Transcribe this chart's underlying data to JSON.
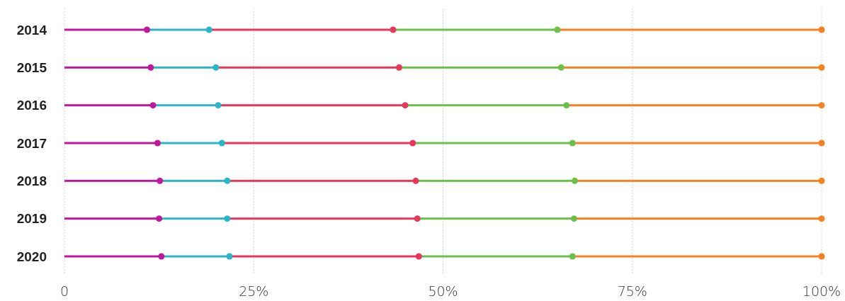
{
  "chart_data": {
    "type": "bar",
    "orientation": "horizontal",
    "stacked": true,
    "marker": "circle",
    "grid": "x",
    "categories": [
      "2014",
      "2015",
      "2016",
      "2017",
      "2018",
      "2019",
      "2020"
    ],
    "xlim": [
      0,
      100
    ],
    "xticks": [
      {
        "value": 0,
        "label": "0"
      },
      {
        "value": 25,
        "label": "25%"
      },
      {
        "value": 50,
        "label": "50%"
      },
      {
        "value": 75,
        "label": "75%"
      },
      {
        "value": 100,
        "label": "100%"
      }
    ],
    "series": [
      {
        "color": "#c0189a",
        "values": [
          10.9,
          11.4,
          11.7,
          12.3,
          12.6,
          12.5,
          12.8
        ]
      },
      {
        "color": "#2bb5c8",
        "values": [
          8.2,
          8.6,
          8.6,
          8.5,
          8.9,
          9.0,
          9.0
        ]
      },
      {
        "color": "#e8375a",
        "values": [
          24.3,
          24.2,
          24.7,
          25.2,
          24.9,
          25.1,
          25.0
        ]
      },
      {
        "color": "#6cc04a",
        "values": [
          21.7,
          21.4,
          21.3,
          21.1,
          21.0,
          20.7,
          20.3
        ]
      },
      {
        "color": "#f5821f",
        "values": [
          34.9,
          34.4,
          33.7,
          32.9,
          32.6,
          32.7,
          32.9
        ]
      },
      {
        "type": "scatter",
        "color": "#c0189a",
        "values": [
          10.9,
          11.4,
          11.7,
          12.3,
          12.6,
          12.5,
          12.8
        ]
      },
      {
        "type": "scatter",
        "color": "#2bb5c8",
        "values": [
          19.1,
          20.0,
          20.3,
          20.8,
          21.5,
          21.5,
          21.8
        ]
      },
      {
        "type": "scatter",
        "color": "#e8375a",
        "values": [
          43.4,
          44.2,
          45.0,
          46.0,
          46.4,
          46.6,
          46.8
        ]
      },
      {
        "type": "scatter",
        "color": "#6cc04a",
        "values": [
          65.1,
          65.6,
          66.3,
          67.1,
          67.4,
          67.3,
          67.1
        ]
      },
      {
        "type": "scatter",
        "color": "#f5821f",
        "values": [
          100,
          100,
          100,
          100,
          100,
          100,
          100
        ]
      }
    ]
  }
}
